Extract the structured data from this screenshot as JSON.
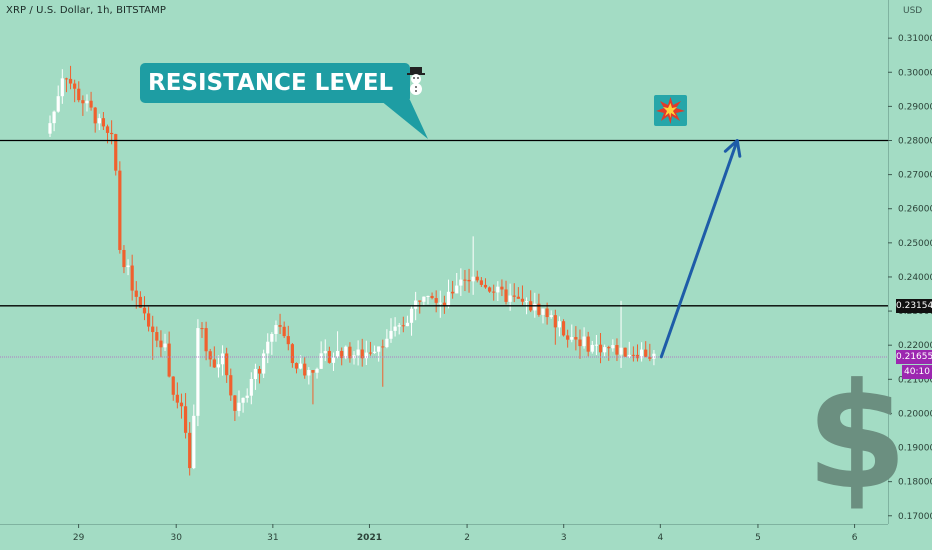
{
  "header": {
    "symbol_title": "XRP / U.S. Dollar, 1h, BITSTAMP"
  },
  "annotation": {
    "callout_text": "RESISTANCE LEVEL",
    "callout_emoji": "snowman-icon",
    "target_emoji": "collision-icon"
  },
  "colors": {
    "background": "#a3dcc4",
    "up_candle": "#ffffff",
    "down_candle": "#f0602e",
    "arrow": "#1e5ca8",
    "callout": "#1e9da3",
    "current_price_badge": "#9c27b0"
  },
  "chart_data": {
    "type": "candlestick",
    "title": "XRP / U.S. Dollar, 1h, BITSTAMP",
    "currency": "USD",
    "y_ticks": [
      "0.31000",
      "0.30000",
      "0.29000",
      "0.28000",
      "0.27000",
      "0.26000",
      "0.25000",
      "0.24000",
      "0.23000",
      "0.22000",
      "0.21000",
      "0.20000",
      "0.19000",
      "0.18000",
      "0.17000"
    ],
    "ylim": [
      0.167,
      0.314
    ],
    "x_tick_labels": [
      {
        "label": "29",
        "day": 0.29
      },
      {
        "label": "30",
        "day": 1.28
      },
      {
        "label": "31",
        "day": 2.26
      },
      {
        "label": "2021",
        "day": 3.24
      },
      {
        "label": "2",
        "day": 4.23
      },
      {
        "label": "3",
        "day": 5.21
      },
      {
        "label": "4",
        "day": 6.19
      },
      {
        "label": "5",
        "day": 7.18
      },
      {
        "label": "6",
        "day": 8.16
      }
    ],
    "horizontal_lines": [
      {
        "name": "resistance",
        "price": 0.28
      },
      {
        "name": "support",
        "price": 0.23154,
        "label": "0.23154"
      }
    ],
    "current_price": {
      "price": 0.21655,
      "label": "0.21655",
      "countdown": "40:10"
    },
    "projection_arrow": {
      "from": {
        "day": 6.2,
        "price": 0.2166
      },
      "to": {
        "day": 6.97,
        "price": 0.28
      }
    },
    "price_path": [
      {
        "day": 0.0,
        "price": 0.282
      },
      {
        "day": 0.08,
        "price": 0.288
      },
      {
        "day": 0.18,
        "price": 0.301
      },
      {
        "day": 0.3,
        "price": 0.294
      },
      {
        "day": 0.45,
        "price": 0.289
      },
      {
        "day": 0.6,
        "price": 0.282
      },
      {
        "day": 0.7,
        "price": 0.279
      },
      {
        "day": 0.73,
        "price": 0.25
      },
      {
        "day": 0.85,
        "price": 0.24
      },
      {
        "day": 0.95,
        "price": 0.23
      },
      {
        "day": 1.1,
        "price": 0.224
      },
      {
        "day": 1.2,
        "price": 0.22
      },
      {
        "day": 1.3,
        "price": 0.205
      },
      {
        "day": 1.4,
        "price": 0.199
      },
      {
        "day": 1.47,
        "price": 0.18
      },
      {
        "day": 1.55,
        "price": 0.23
      },
      {
        "day": 1.65,
        "price": 0.215
      },
      {
        "day": 1.8,
        "price": 0.216
      },
      {
        "day": 1.92,
        "price": 0.201
      },
      {
        "day": 2.02,
        "price": 0.206
      },
      {
        "day": 2.2,
        "price": 0.215
      },
      {
        "day": 2.35,
        "price": 0.228
      },
      {
        "day": 2.5,
        "price": 0.215
      },
      {
        "day": 2.65,
        "price": 0.212
      },
      {
        "day": 2.8,
        "price": 0.216
      },
      {
        "day": 3.0,
        "price": 0.218
      },
      {
        "day": 3.2,
        "price": 0.217
      },
      {
        "day": 3.4,
        "price": 0.221
      },
      {
        "day": 3.6,
        "price": 0.225
      },
      {
        "day": 3.85,
        "price": 0.237
      },
      {
        "day": 4.05,
        "price": 0.232
      },
      {
        "day": 4.2,
        "price": 0.24
      },
      {
        "day": 4.4,
        "price": 0.239
      },
      {
        "day": 4.6,
        "price": 0.235
      },
      {
        "day": 4.85,
        "price": 0.232
      },
      {
        "day": 5.05,
        "price": 0.23
      },
      {
        "day": 5.25,
        "price": 0.224
      },
      {
        "day": 5.5,
        "price": 0.22
      },
      {
        "day": 5.7,
        "price": 0.219
      },
      {
        "day": 5.9,
        "price": 0.218
      },
      {
        "day": 6.05,
        "price": 0.218
      },
      {
        "day": 6.15,
        "price": 0.2166
      }
    ]
  }
}
